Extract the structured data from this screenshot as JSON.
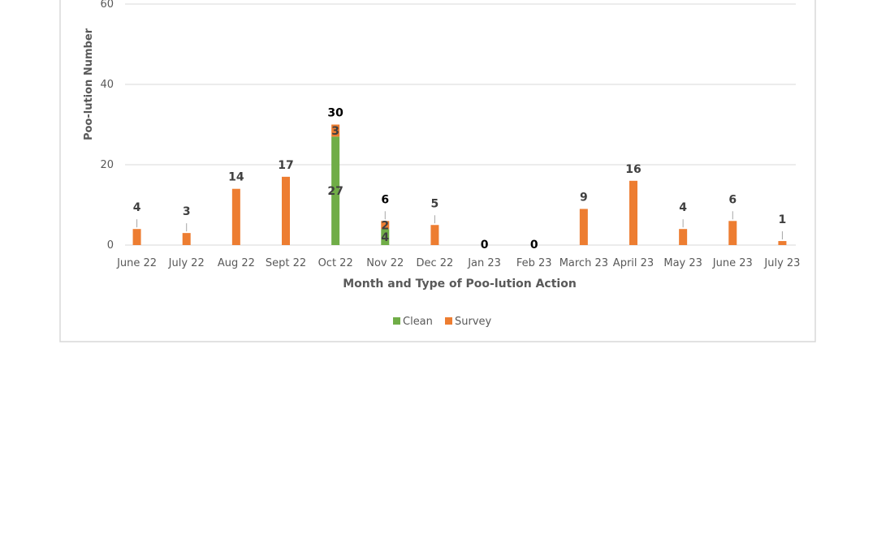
{
  "chart_data": {
    "type": "bar",
    "stacked": true,
    "title": "",
    "xlabel": "Month and Type of Poo-lution Action",
    "ylabel": "Poo-lution Number",
    "ylim": [
      0,
      60
    ],
    "yticks": [
      0,
      20,
      40,
      60
    ],
    "grid": true,
    "legend_position": "bottom",
    "categories": [
      "June 22",
      "July 22",
      "Aug 22",
      "Sept 22",
      "Oct 22",
      "Nov 22",
      "Dec 22",
      "Jan 23",
      "Feb 23",
      "March 23",
      "April 23",
      "May 23",
      "June 23",
      "July 23"
    ],
    "series": [
      {
        "name": "Clean",
        "color": "#70AD47",
        "values": [
          0,
          0,
          0,
          0,
          27,
          4,
          0,
          0,
          0,
          0,
          0,
          0,
          0,
          0
        ]
      },
      {
        "name": "Survey",
        "color": "#ED7D31",
        "values": [
          4,
          3,
          14,
          17,
          3,
          2,
          5,
          0,
          0,
          9,
          16,
          4,
          6,
          1
        ]
      }
    ],
    "segment_labels": [
      {
        "category_index": 4,
        "series": "Clean",
        "text": "27"
      },
      {
        "category_index": 4,
        "series": "Survey",
        "text": "3"
      },
      {
        "category_index": 5,
        "series": "Clean",
        "text": "4"
      },
      {
        "category_index": 5,
        "series": "Survey",
        "text": "2"
      }
    ],
    "total_labels": [
      "4",
      "3",
      "14",
      "17",
      "30",
      "6",
      "5",
      "0",
      "0",
      "9",
      "16",
      "4",
      "6",
      "1"
    ],
    "bold_total_indices": [
      4,
      5,
      7,
      8
    ]
  }
}
